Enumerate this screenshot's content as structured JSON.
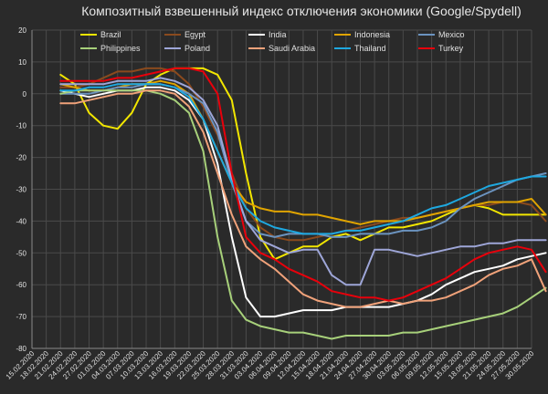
{
  "chart_data": {
    "type": "line",
    "title": "Композитный взвешенный индекс отключения экономики (Google/Spydell)",
    "ylim": [
      -80,
      20
    ],
    "y_ticks": [
      20,
      10,
      0,
      -10,
      -20,
      -30,
      -40,
      -50,
      -60,
      -70,
      -80
    ],
    "x_ticks": [
      "15.02.2020",
      "18.02.2020",
      "21.02.2020",
      "24.02.2020",
      "27.02.2020",
      "01.03.2020",
      "04.03.2020",
      "07.03.2020",
      "10.03.2020",
      "13.03.2020",
      "16.03.2020",
      "19.03.2020",
      "22.03.2020",
      "25.03.2020",
      "28.03.2020",
      "31.03.2020",
      "03.04.2020",
      "06.04.2020",
      "09.04.2020",
      "12.04.2020",
      "15.04.2020",
      "18.04.2020",
      "21.04.2020",
      "24.04.2020",
      "27.04.2020",
      "30.04.2020",
      "03.05.2020",
      "06.05.2020",
      "09.05.2020",
      "12.05.2020",
      "15.05.2020",
      "18.05.2020",
      "21.05.2020",
      "24.05.2020",
      "27.05.2020",
      "30.05.2020"
    ],
    "grid": true,
    "legend_position": "top",
    "series": [
      {
        "name": "Brazil",
        "color": "#f2e600",
        "start": 2,
        "values": [
          6,
          3,
          -6,
          -10,
          -11,
          -6,
          3,
          6,
          8,
          8,
          8,
          6,
          -2,
          -25,
          -45,
          -52,
          -50,
          -48,
          -48,
          -45,
          -44,
          -46,
          -44,
          -42,
          -42,
          -41,
          -40,
          -38,
          -36,
          -35,
          -36,
          -38,
          -38,
          -38,
          -38
        ]
      },
      {
        "name": "Egypt",
        "color": "#8a4a1e",
        "start": 2,
        "values": [
          2,
          2,
          3,
          5,
          7,
          7,
          8,
          8,
          7,
          3,
          -4,
          -13,
          -25,
          -36,
          -42,
          -45,
          -46,
          -46,
          -45,
          -44,
          -43,
          -42,
          -41,
          -40,
          -39,
          -39,
          -38,
          -37,
          -36,
          -35,
          -35,
          -34,
          -34,
          -35,
          -40
        ]
      },
      {
        "name": "India",
        "color": "#ffffff",
        "start": 2,
        "values": [
          1,
          0,
          -1,
          0,
          1,
          1,
          2,
          2,
          1,
          -2,
          -8,
          -22,
          -45,
          -64,
          -70,
          -70,
          -69,
          -68,
          -68,
          -68,
          -67,
          -67,
          -67,
          -67,
          -66,
          -65,
          -63,
          -60,
          -58,
          -56,
          -55,
          -54,
          -52,
          -51,
          -50
        ]
      },
      {
        "name": "Indonesia",
        "color": "#e0a400",
        "start": 2,
        "values": [
          3,
          2,
          1,
          1,
          2,
          3,
          3,
          4,
          3,
          0,
          -8,
          -18,
          -28,
          -34,
          -36,
          -37,
          -37,
          -38,
          -38,
          -39,
          -40,
          -41,
          -40,
          -40,
          -40,
          -39,
          -38,
          -37,
          -36,
          -35,
          -34,
          -34,
          -34,
          -33,
          -38
        ]
      },
      {
        "name": "Mexico",
        "color": "#6b93bf",
        "start": 2,
        "values": [
          0,
          0,
          0,
          1,
          2,
          2,
          3,
          3,
          2,
          0,
          -3,
          -12,
          -28,
          -40,
          -44,
          -45,
          -44,
          -44,
          -44,
          -45,
          -45,
          -44,
          -44,
          -44,
          -43,
          -43,
          -42,
          -40,
          -36,
          -33,
          -31,
          -29,
          -27,
          -26,
          -25
        ]
      },
      {
        "name": "Philippines",
        "color": "#a7d07a",
        "start": 2,
        "values": [
          0,
          1,
          1,
          1,
          1,
          1,
          1,
          0,
          -2,
          -6,
          -18,
          -45,
          -65,
          -71,
          -73,
          -74,
          -75,
          -75,
          -76,
          -77,
          -76,
          -76,
          -76,
          -76,
          -75,
          -75,
          -74,
          -73,
          -72,
          -71,
          -70,
          -69,
          -67,
          -64,
          -61
        ]
      },
      {
        "name": "Poland",
        "color": "#9ea6d8",
        "start": 2,
        "values": [
          3,
          3,
          3,
          3,
          4,
          4,
          4,
          5,
          4,
          2,
          -2,
          -10,
          -27,
          -40,
          -46,
          -48,
          -50,
          -49,
          -49,
          -57,
          -60,
          -60,
          -49,
          -49,
          -50,
          -51,
          -50,
          -49,
          -48,
          -48,
          -47,
          -47,
          -46,
          -46,
          -46
        ]
      },
      {
        "name": "Saudi Arabia",
        "color": "#f0a27a",
        "start": 2,
        "values": [
          -3,
          -3,
          -2,
          -1,
          0,
          0,
          1,
          1,
          0,
          -4,
          -12,
          -25,
          -38,
          -48,
          -52,
          -55,
          -59,
          -63,
          -65,
          -66,
          -67,
          -67,
          -66,
          -65,
          -66,
          -65,
          -65,
          -64,
          -62,
          -60,
          -57,
          -55,
          -54,
          -52,
          -62
        ]
      },
      {
        "name": "Thailand",
        "color": "#1ea8e0",
        "start": 2,
        "values": [
          1,
          1,
          2,
          2,
          3,
          3,
          3,
          3,
          2,
          -1,
          -8,
          -18,
          -28,
          -36,
          -40,
          -42,
          -43,
          -44,
          -44,
          -44,
          -43,
          -43,
          -42,
          -41,
          -40,
          -38,
          -36,
          -35,
          -33,
          -31,
          -29,
          -28,
          -27,
          -26,
          -26
        ]
      },
      {
        "name": "Turkey",
        "color": "#e8000b",
        "start": 2,
        "values": [
          4,
          4,
          4,
          4,
          5,
          5,
          6,
          7,
          8,
          8,
          7,
          0,
          -25,
          -45,
          -50,
          -52,
          -55,
          -57,
          -59,
          -62,
          -63,
          -64,
          -64,
          -65,
          -64,
          -62,
          -60,
          -58,
          -55,
          -52,
          -50,
          -49,
          -48,
          -49,
          -56
        ]
      }
    ]
  }
}
